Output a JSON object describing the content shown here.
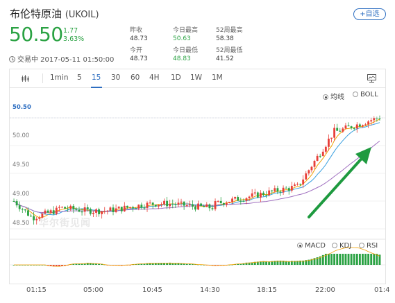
{
  "header": {
    "title": "布伦特原油",
    "symbol": "(UKOIL)",
    "add_label": "+自选",
    "price": "50.50",
    "change": "1.77",
    "change_pct": "3.63%",
    "time_label": "交易中 2017-05-11 01:50:00"
  },
  "stats": [
    {
      "label": "昨收",
      "value": "48.73"
    },
    {
      "label": "今日最高",
      "value": "50.63"
    },
    {
      "label": "52周最高",
      "value": "58.38"
    },
    {
      "label": "今开",
      "value": "48.73"
    },
    {
      "label": "今日最低",
      "value": "48.83"
    },
    {
      "label": "52周最低",
      "value": "41.52"
    }
  ],
  "toolbar": {
    "timeframes": [
      "1min",
      "5",
      "15",
      "30",
      "60",
      "4H",
      "1D",
      "1W",
      "1M"
    ],
    "active": "15"
  },
  "overlay_options": {
    "ma": "均线",
    "boll": "BOLL",
    "selected": "均线"
  },
  "indicator_options": {
    "macd": "MACD",
    "kdj": "KDJ",
    "rsi": "RSI",
    "selected": "MACD"
  },
  "watermark": "华尔街见闻",
  "colors": {
    "up": "#e8403a",
    "down": "#2aa243",
    "accent": "#2d6ec1",
    "arrow": "#1e9a3f"
  },
  "chart_data": {
    "type": "candlestick",
    "y_ticks": [
      "50.50",
      "50.00",
      "49.50",
      "49.00",
      "48.50"
    ],
    "current_price_label": "50.50",
    "x_ticks": [
      "01:15",
      "05:00",
      "10:45",
      "14:30",
      "18:15",
      "22:00",
      "01:4"
    ],
    "ylim": [
      48.35,
      50.7
    ],
    "series_hint": "15-minute candles, price range 48.55–50.63, MA lines and MACD histogram",
    "arrow": "green upward annotation arrow"
  }
}
